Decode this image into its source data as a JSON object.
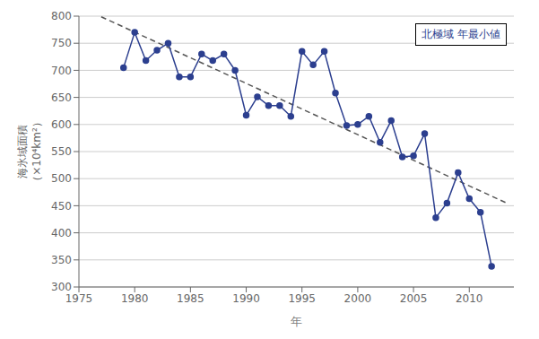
{
  "chart_data": {
    "type": "line",
    "x": [
      1979,
      1980,
      1981,
      1982,
      1983,
      1984,
      1985,
      1986,
      1987,
      1988,
      1989,
      1990,
      1991,
      1992,
      1993,
      1994,
      1995,
      1996,
      1997,
      1998,
      1999,
      2000,
      2001,
      2002,
      2003,
      2004,
      2005,
      2006,
      2007,
      2008,
      2009,
      2010,
      2011,
      2012
    ],
    "values": [
      705,
      770,
      718,
      737,
      750,
      688,
      688,
      730,
      718,
      730,
      700,
      617,
      651,
      635,
      635,
      615,
      735,
      710,
      735,
      658,
      598,
      600,
      615,
      567,
      607,
      540,
      542,
      583,
      428,
      455,
      511,
      463,
      438,
      338
    ],
    "color": "#2c3f8f",
    "marker": "circle",
    "trend": {
      "x": [
        1977,
        2013.5
      ],
      "values": [
        798.85,
        453.53
      ],
      "color": "#555555",
      "line_style": "dashed"
    },
    "annotation": "北極域 年最小値",
    "xlabel": "年",
    "ylabel": "海氷域面積\n（×10⁴km²）",
    "xlim": [
      1975,
      2014
    ],
    "ylim": [
      300,
      800
    ],
    "xticks": [
      1975,
      1980,
      1985,
      1990,
      1995,
      2000,
      2005,
      2010
    ],
    "yticks": [
      300,
      350,
      400,
      450,
      500,
      550,
      600,
      650,
      700,
      750,
      800
    ],
    "grid": true
  }
}
